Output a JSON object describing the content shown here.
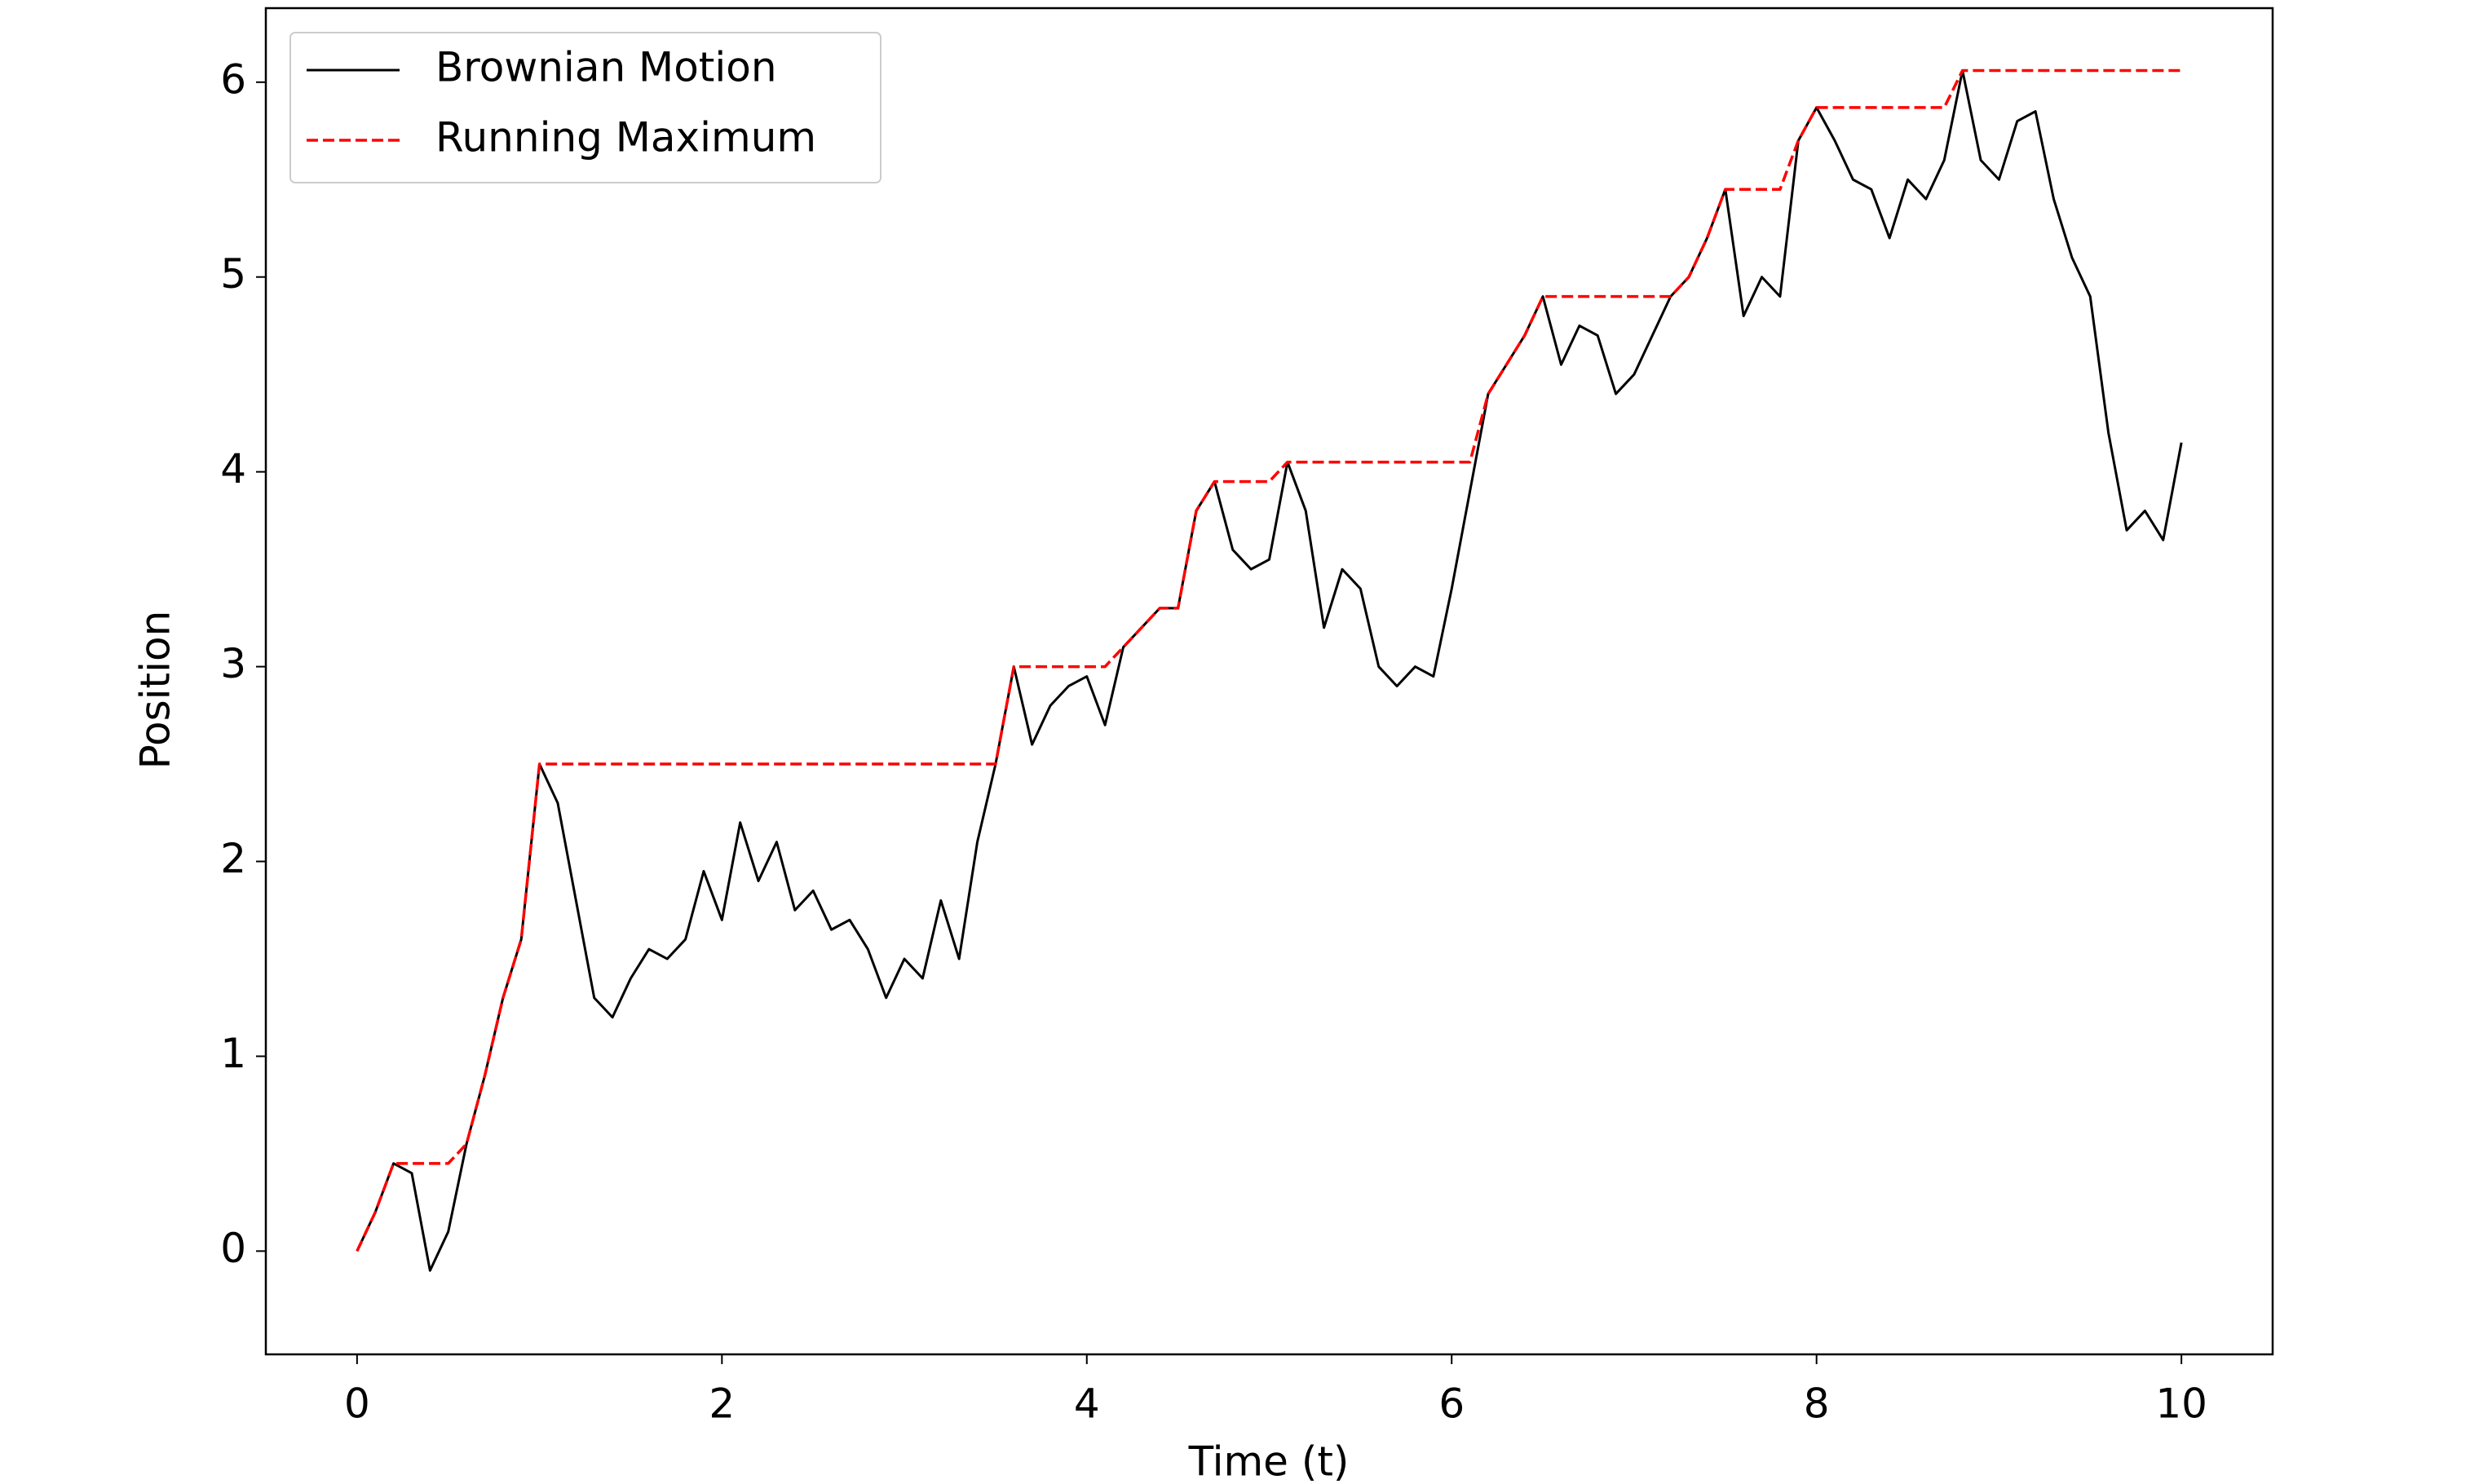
{
  "chart_data": {
    "type": "line",
    "x_label": "Time (t)",
    "y_label": "Position",
    "x": [
      0,
      0.1,
      0.2,
      0.3,
      0.4,
      0.5,
      0.6,
      0.7,
      0.8,
      0.9,
      1.0,
      1.1,
      1.2,
      1.3,
      1.4,
      1.5,
      1.6,
      1.7,
      1.8,
      1.9,
      2.0,
      2.1,
      2.2,
      2.3,
      2.4,
      2.5,
      2.6,
      2.7,
      2.8,
      2.9,
      3.0,
      3.1,
      3.2,
      3.3,
      3.4,
      3.5,
      3.6,
      3.7,
      3.8,
      3.9,
      4.0,
      4.1,
      4.2,
      4.3,
      4.4,
      4.5,
      4.6,
      4.7,
      4.8,
      4.9,
      5.0,
      5.1,
      5.2,
      5.3,
      5.4,
      5.5,
      5.6,
      5.7,
      5.8,
      5.9,
      6.0,
      6.1,
      6.2,
      6.3,
      6.4,
      6.5,
      6.6,
      6.7,
      6.8,
      6.9,
      7.0,
      7.1,
      7.2,
      7.3,
      7.4,
      7.5,
      7.6,
      7.7,
      7.8,
      7.9,
      8.0,
      8.1,
      8.2,
      8.3,
      8.4,
      8.5,
      8.6,
      8.7,
      8.8,
      8.9,
      9.0,
      9.1,
      9.2,
      9.3,
      9.4,
      9.5,
      9.6,
      9.7,
      9.8,
      9.9,
      10.0
    ],
    "series": [
      {
        "name": "Brownian Motion",
        "color": "#000000",
        "dash": false,
        "values": [
          0,
          0.2,
          0.45,
          0.4,
          -0.1,
          0.1,
          0.55,
          0.9,
          1.3,
          1.6,
          2.5,
          2.3,
          1.8,
          1.3,
          1.2,
          1.4,
          1.55,
          1.5,
          1.6,
          1.95,
          1.7,
          2.2,
          1.9,
          2.1,
          1.75,
          1.85,
          1.65,
          1.7,
          1.55,
          1.3,
          1.5,
          1.4,
          1.8,
          1.5,
          2.1,
          2.5,
          3.0,
          2.6,
          2.8,
          2.9,
          2.95,
          2.7,
          3.1,
          3.2,
          3.3,
          3.3,
          3.8,
          3.95,
          3.6,
          3.5,
          3.55,
          4.05,
          3.8,
          3.2,
          3.5,
          3.4,
          3.0,
          2.9,
          3.0,
          2.95,
          3.4,
          3.9,
          4.4,
          4.55,
          4.7,
          4.9,
          4.55,
          4.75,
          4.7,
          4.4,
          4.5,
          4.7,
          4.9,
          5.0,
          5.2,
          5.45,
          4.8,
          5.0,
          4.9,
          5.7,
          5.87,
          5.7,
          5.5,
          5.45,
          5.2,
          5.5,
          5.4,
          5.6,
          6.06,
          5.6,
          5.5,
          5.8,
          5.85,
          5.4,
          5.1,
          4.9,
          4.2,
          3.7,
          3.8,
          3.65,
          4.15
        ]
      },
      {
        "name": "Running Maximum",
        "color": "#ff0000",
        "dash": true,
        "values": [
          0,
          0.2,
          0.45,
          0.45,
          0.45,
          0.45,
          0.55,
          0.9,
          1.3,
          1.6,
          2.5,
          2.5,
          2.5,
          2.5,
          2.5,
          2.5,
          2.5,
          2.5,
          2.5,
          2.5,
          2.5,
          2.5,
          2.5,
          2.5,
          2.5,
          2.5,
          2.5,
          2.5,
          2.5,
          2.5,
          2.5,
          2.5,
          2.5,
          2.5,
          2.5,
          2.5,
          3.0,
          3.0,
          3.0,
          3.0,
          3.0,
          3.0,
          3.1,
          3.2,
          3.3,
          3.3,
          3.8,
          3.95,
          3.95,
          3.95,
          3.95,
          4.05,
          4.05,
          4.05,
          4.05,
          4.05,
          4.05,
          4.05,
          4.05,
          4.05,
          4.05,
          4.05,
          4.4,
          4.55,
          4.7,
          4.9,
          4.9,
          4.9,
          4.9,
          4.9,
          4.9,
          4.9,
          4.9,
          5.0,
          5.2,
          5.45,
          5.45,
          5.45,
          5.45,
          5.7,
          5.87,
          5.87,
          5.87,
          5.87,
          5.87,
          5.87,
          5.87,
          5.87,
          6.06,
          6.06,
          6.06,
          6.06,
          6.06,
          6.06,
          6.06,
          6.06,
          6.06,
          6.06,
          6.06,
          6.06,
          6.06
        ]
      }
    ],
    "xlim": [
      -0.5,
      10.5
    ],
    "ylim": [
      -0.53,
      6.38
    ],
    "xticks": [
      0,
      2,
      4,
      6,
      8,
      10
    ],
    "yticks": [
      0,
      1,
      2,
      3,
      4,
      5,
      6
    ],
    "grid": false,
    "legend": "upper left"
  }
}
